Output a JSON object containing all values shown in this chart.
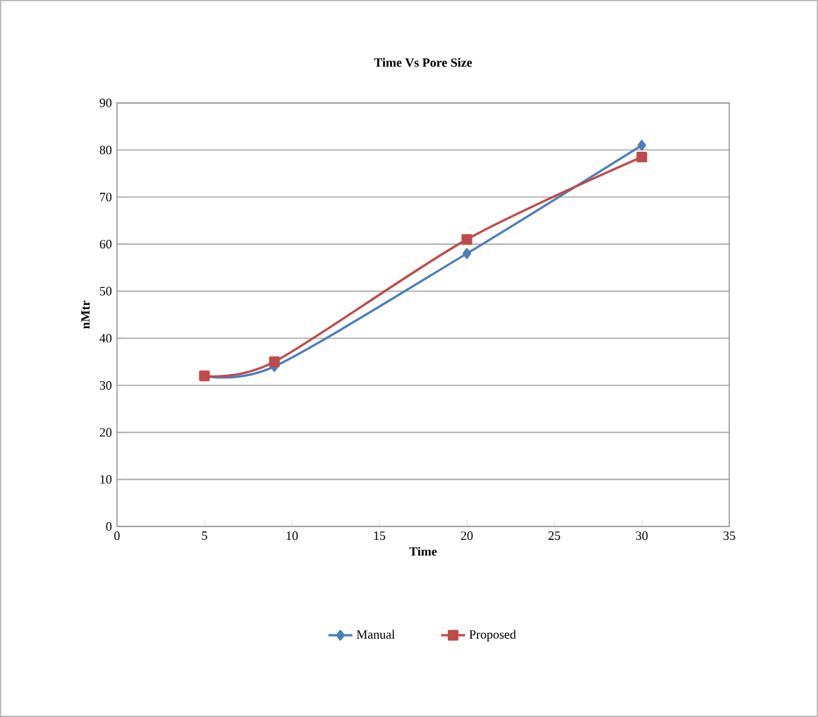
{
  "chart_data": {
    "type": "line",
    "title": "Time Vs Pore Size",
    "xlabel": "Time",
    "ylabel": "nMtr",
    "x": [
      5,
      9,
      20,
      30
    ],
    "series": [
      {
        "name": "Manual",
        "color": "#4a7ebb",
        "values": [
          32,
          34,
          58,
          81
        ],
        "marker": "diamond"
      },
      {
        "name": "Proposed",
        "color": "#be4b48",
        "values": [
          32,
          35,
          61,
          78.5
        ],
        "marker": "square"
      }
    ],
    "xlim": [
      0,
      35
    ],
    "xticks": [
      0,
      5,
      10,
      15,
      20,
      25,
      30,
      35
    ],
    "ylim": [
      0,
      90
    ],
    "yticks": [
      0,
      10,
      20,
      30,
      40,
      50,
      60,
      70,
      80,
      90
    ],
    "grid": "y",
    "legend": "bottom"
  }
}
